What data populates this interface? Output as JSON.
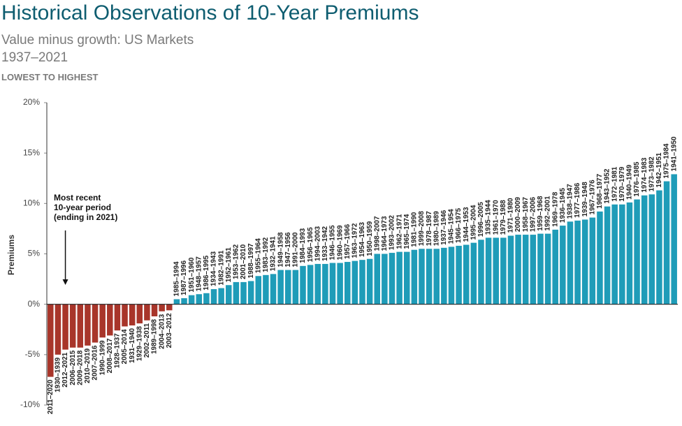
{
  "chart_data": {
    "type": "bar",
    "title": "Historical Observations of 10-Year Premiums",
    "subtitle": "Value minus growth: US Markets",
    "period": "1937–2021",
    "sort_note": "LOWEST TO HIGHEST",
    "y_label": "Premiums",
    "annotation": [
      "Most recent",
      "10-year period",
      "(ending in 2021)"
    ],
    "annotation_category_index": 2,
    "positive_color": "#1f9cb8",
    "negative_color": "#a8352a",
    "ylim": [
      -10,
      20
    ],
    "yticks": [
      {
        "value": -10,
        "label": "-10%"
      },
      {
        "value": -5,
        "label": "-5%"
      },
      {
        "value": 0,
        "label": "0%"
      },
      {
        "value": 5,
        "label": "5%"
      },
      {
        "value": 10,
        "label": "10%"
      },
      {
        "value": 15,
        "label": "15%"
      },
      {
        "value": 20,
        "label": "20%"
      }
    ],
    "categories": [
      "2011–2020",
      "1930–1939",
      "2012–2021",
      "2006–2015",
      "2009–2018",
      "2010–2019",
      "2007–2016",
      "1990–1999",
      "2008–2017",
      "1928–1937",
      "2005–2014",
      "1931–1940",
      "1929–1938",
      "2002–2011",
      "1989–1998",
      "2004–2013",
      "2003–2012",
      "1985–1994",
      "1987–1996",
      "1951–1960",
      "1948–1957",
      "1986–1995",
      "1934–1943",
      "1982–1991",
      "1952–1961",
      "1953–1962",
      "2001–2010",
      "1988–1997",
      "1955–1964",
      "1983–1992",
      "1932–1941",
      "1949–1958",
      "1947–1956",
      "1991–2000",
      "1984–1993",
      "1956–1965",
      "1994–2003",
      "1933–1942",
      "1946–1955",
      "1960–1969",
      "1957–1966",
      "1963–1972",
      "1954–1963",
      "1950–1959",
      "1998–2007",
      "1964–1973",
      "1993–2002",
      "1962–1971",
      "1965–1974",
      "1981–1990",
      "1999–2008",
      "1978–1987",
      "1980–1989",
      "1937–1946",
      "1945–1954",
      "1966–1975",
      "1944–1953",
      "1995–2004",
      "1996–2005",
      "1935–1944",
      "1961–1970",
      "1979–1988",
      "1971–1980",
      "2000–2009",
      "1958–1967",
      "1997–2006",
      "1959–1968",
      "1992–2001",
      "1969–1978",
      "1936–1945",
      "1938–1947",
      "1977–1986",
      "1939–1948",
      "1967–1976",
      "1968–1977",
      "1943–1952",
      "1972–1981",
      "1970–1979",
      "1940–1949",
      "1976–1985",
      "1974–1983",
      "1973–1982",
      "1942–1951",
      "1975–1984",
      "1941–1950"
    ],
    "values": [
      -7.2,
      -5.0,
      -4.5,
      -4.3,
      -4.3,
      -4.1,
      -3.8,
      -3.3,
      -3.1,
      -2.6,
      -2.2,
      -2.1,
      -1.9,
      -1.6,
      -1.2,
      -0.7,
      -0.6,
      0.5,
      0.6,
      0.9,
      1.0,
      1.1,
      1.5,
      1.6,
      1.9,
      2.2,
      2.2,
      2.3,
      2.8,
      2.9,
      3.0,
      3.4,
      3.4,
      3.4,
      3.8,
      3.9,
      4.0,
      4.0,
      4.1,
      4.1,
      4.2,
      4.3,
      4.4,
      4.5,
      5.0,
      5.0,
      5.1,
      5.2,
      5.2,
      5.4,
      5.5,
      5.5,
      5.5,
      5.6,
      5.7,
      5.8,
      5.9,
      6.1,
      6.4,
      6.6,
      6.6,
      6.6,
      6.8,
      6.9,
      6.9,
      6.9,
      7.0,
      7.0,
      7.4,
      7.8,
      8.2,
      8.3,
      8.4,
      8.6,
      9.2,
      9.7,
      9.9,
      9.9,
      10.1,
      10.4,
      10.8,
      10.9,
      11.3,
      12.2,
      12.9
    ]
  }
}
